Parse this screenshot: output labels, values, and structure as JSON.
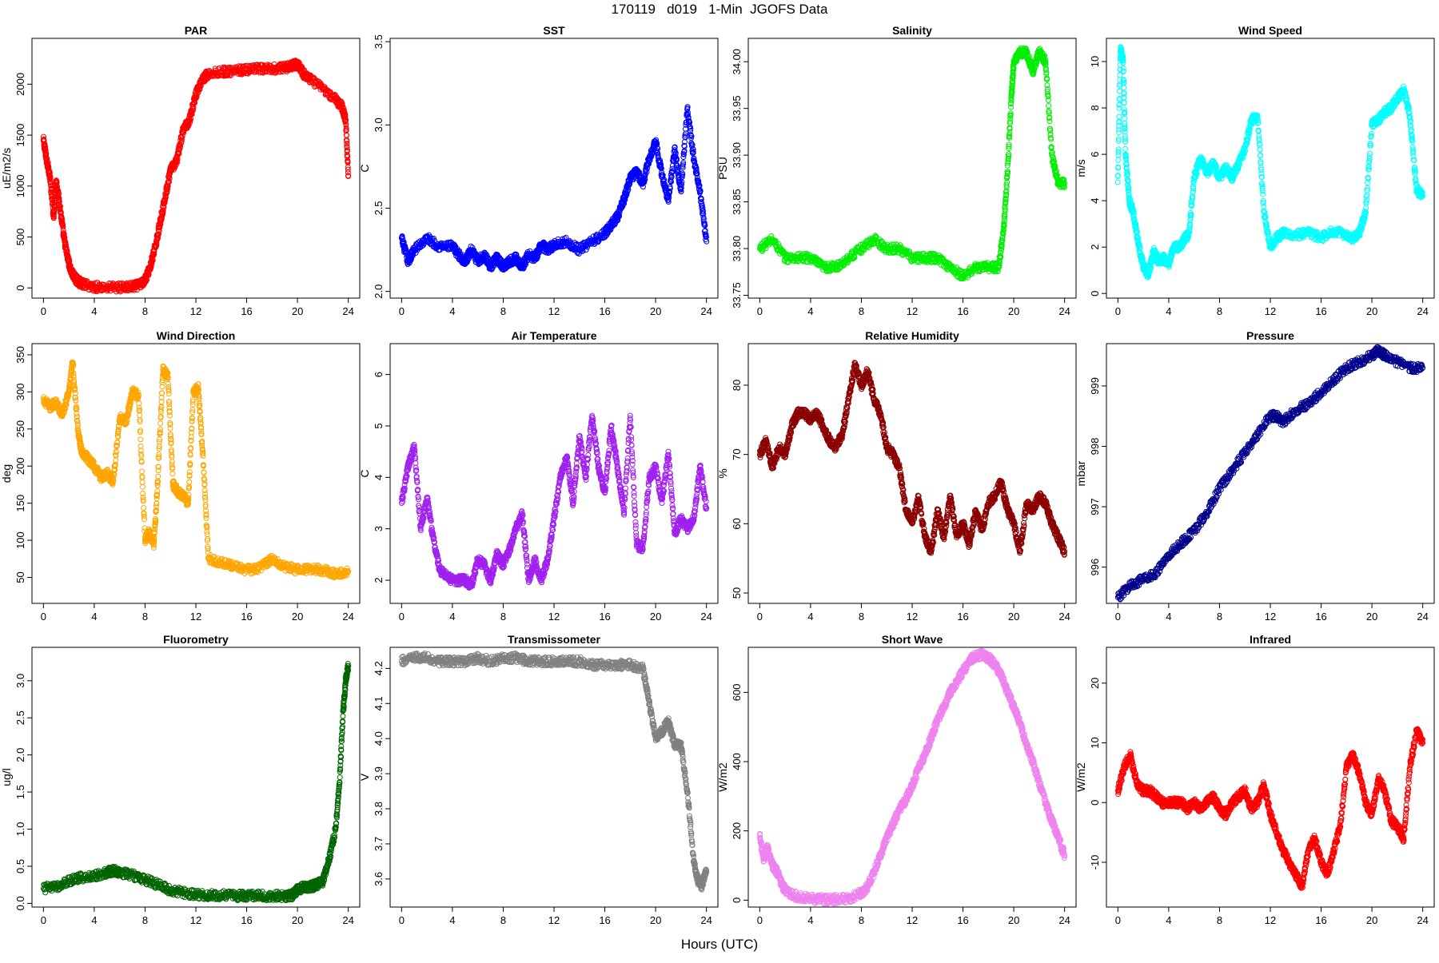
{
  "figure": {
    "title": "170119   d019   1-Min  JGOFS Data",
    "xlabel": "Hours (UTC)"
  },
  "chart_data": [
    {
      "type": "scatter",
      "title": "PAR",
      "ylabel": "uE/m2/s",
      "color": "#ff0000",
      "xlim": [
        0,
        24
      ],
      "xticks": [
        0,
        4,
        8,
        12,
        16,
        20,
        24
      ],
      "ylim": [
        -100,
        2450
      ],
      "yticks": [
        0,
        500,
        1000,
        1500,
        2000
      ],
      "x": [
        0,
        0.2,
        0.5,
        0.8,
        1.0,
        1.3,
        1.6,
        1.9,
        2.2,
        2.6,
        3.0,
        4.0,
        5.0,
        6.0,
        7.0,
        7.6,
        8.0,
        8.4,
        8.8,
        9.2,
        9.6,
        10.0,
        10.5,
        11.0,
        11.5,
        12.0,
        12.5,
        13.0,
        14.0,
        15.0,
        16.0,
        17.0,
        18.0,
        19.0,
        19.5,
        20.0,
        20.5,
        21.0,
        22.0,
        23.0,
        23.5,
        23.8,
        24.0
      ],
      "y": [
        1450,
        1300,
        1100,
        700,
        1050,
        800,
        500,
        300,
        150,
        80,
        40,
        10,
        5,
        5,
        10,
        30,
        80,
        200,
        400,
        650,
        900,
        1150,
        1250,
        1550,
        1650,
        1900,
        2050,
        2100,
        2120,
        2130,
        2140,
        2150,
        2150,
        2160,
        2180,
        2200,
        2100,
        2050,
        1950,
        1850,
        1780,
        1650,
        1100
      ]
    },
    {
      "type": "scatter",
      "title": "SST",
      "ylabel": "C",
      "color": "#0000ff",
      "xlim": [
        0,
        24
      ],
      "xticks": [
        0,
        4,
        8,
        12,
        16,
        20,
        24
      ],
      "ylim": [
        1.96,
        3.52
      ],
      "yticks": [
        2.0,
        2.5,
        3.0,
        3.5
      ],
      "x": [
        0,
        0.5,
        1.0,
        2.0,
        3.0,
        4.0,
        4.5,
        5.0,
        5.5,
        6.0,
        6.5,
        7.0,
        7.5,
        8.0,
        8.5,
        9.0,
        9.5,
        10.0,
        10.5,
        11.0,
        11.5,
        12.0,
        13.0,
        14.0,
        15.0,
        16.0,
        16.5,
        17.0,
        17.5,
        18.0,
        18.5,
        19.0,
        19.5,
        20.0,
        20.5,
        21.0,
        21.5,
        22.0,
        22.5,
        23.0,
        23.5,
        24.0
      ],
      "y": [
        2.32,
        2.18,
        2.25,
        2.32,
        2.27,
        2.27,
        2.22,
        2.18,
        2.25,
        2.18,
        2.22,
        2.15,
        2.2,
        2.15,
        2.18,
        2.2,
        2.15,
        2.22,
        2.2,
        2.28,
        2.25,
        2.28,
        2.3,
        2.25,
        2.3,
        2.35,
        2.4,
        2.45,
        2.55,
        2.68,
        2.72,
        2.65,
        2.8,
        2.9,
        2.7,
        2.55,
        2.85,
        2.6,
        3.1,
        2.8,
        2.6,
        2.3
      ]
    },
    {
      "type": "scatter",
      "title": "Salinity",
      "ylabel": "PSU",
      "color": "#00ee00",
      "xlim": [
        0,
        24
      ],
      "xticks": [
        0,
        4,
        8,
        12,
        16,
        20,
        24
      ],
      "ylim": [
        33.747,
        34.025
      ],
      "yticks": [
        33.75,
        33.8,
        33.85,
        33.9,
        33.95,
        34.0
      ],
      "x": [
        0,
        1,
        2,
        3,
        4,
        5,
        6,
        7,
        8,
        9,
        10,
        11,
        12,
        13,
        14,
        15,
        16,
        17,
        18,
        18.8,
        19.2,
        19.5,
        19.8,
        20.0,
        20.5,
        21.0,
        21.5,
        22.0,
        22.5,
        23.0,
        23.5,
        24.0
      ],
      "y": [
        33.8,
        33.81,
        33.79,
        33.79,
        33.79,
        33.78,
        33.78,
        33.79,
        33.8,
        33.81,
        33.8,
        33.8,
        33.79,
        33.79,
        33.79,
        33.78,
        33.77,
        33.78,
        33.78,
        33.78,
        33.82,
        33.88,
        33.96,
        34.0,
        34.01,
        34.01,
        33.99,
        34.01,
        34.0,
        33.9,
        33.87,
        33.87
      ]
    },
    {
      "type": "scatter",
      "title": "Wind Speed",
      "ylabel": "m/s",
      "color": "#00ffff",
      "xlim": [
        0,
        24
      ],
      "xticks": [
        0,
        4,
        8,
        12,
        16,
        20,
        24
      ],
      "ylim": [
        -0.2,
        11.0
      ],
      "yticks": [
        0,
        2,
        4,
        6,
        8,
        10
      ],
      "x": [
        0,
        0.2,
        0.4,
        0.6,
        0.9,
        1.2,
        1.6,
        2.0,
        2.4,
        2.8,
        3.2,
        3.6,
        4.0,
        4.4,
        4.8,
        5.2,
        5.6,
        6.0,
        6.5,
        7.0,
        7.5,
        8.0,
        8.5,
        9.0,
        9.5,
        10.0,
        10.5,
        11.0,
        11.5,
        12.0,
        12.5,
        13.0,
        14.0,
        15.0,
        16.0,
        17.0,
        18.0,
        18.5,
        19.0,
        19.5,
        20.0,
        20.5,
        21.0,
        21.5,
        22.0,
        22.5,
        23.0,
        23.5,
        24.0
      ],
      "y": [
        4.8,
        10.5,
        10.2,
        6.0,
        4.0,
        3.5,
        2.2,
        1.2,
        0.8,
        1.8,
        1.4,
        1.5,
        1.3,
        2.0,
        2.0,
        2.3,
        2.6,
        5.0,
        5.8,
        5.2,
        5.6,
        5.0,
        5.4,
        5.0,
        5.6,
        6.2,
        7.5,
        7.6,
        3.5,
        2.0,
        2.4,
        2.6,
        2.5,
        2.6,
        2.4,
        2.7,
        2.5,
        2.4,
        2.6,
        3.5,
        7.3,
        7.5,
        7.8,
        8.0,
        8.4,
        8.8,
        7.6,
        4.5,
        4.2
      ]
    },
    {
      "type": "scatter",
      "title": "Wind Direction",
      "ylabel": "deg",
      "color": "#ffa500",
      "xlim": [
        0,
        24
      ],
      "xticks": [
        0,
        4,
        8,
        12,
        16,
        20,
        24
      ],
      "ylim": [
        15,
        365
      ],
      "yticks": [
        50,
        100,
        150,
        200,
        250,
        300,
        350
      ],
      "x": [
        0,
        0.5,
        1.0,
        1.5,
        2.0,
        2.3,
        2.7,
        3.0,
        3.5,
        4.0,
        4.5,
        5.0,
        5.5,
        6.0,
        6.5,
        7.0,
        7.5,
        8.0,
        8.3,
        8.7,
        9.0,
        9.4,
        9.8,
        10.2,
        10.6,
        11.0,
        11.4,
        11.8,
        12.2,
        12.6,
        13.0,
        14.0,
        15.0,
        16.0,
        17.0,
        18.0,
        19.0,
        20.0,
        21.0,
        22.0,
        23.0,
        24.0
      ],
      "y": [
        290,
        280,
        285,
        270,
        300,
        340,
        250,
        220,
        210,
        200,
        185,
        190,
        180,
        265,
        260,
        300,
        295,
        100,
        110,
        95,
        180,
        330,
        320,
        175,
        165,
        160,
        150,
        300,
        305,
        200,
        75,
        70,
        65,
        60,
        62,
        75,
        65,
        60,
        62,
        60,
        55,
        58
      ]
    },
    {
      "type": "scatter",
      "title": "Air Temperature",
      "ylabel": "C",
      "color": "#a020f0",
      "xlim": [
        0,
        24
      ],
      "xticks": [
        0,
        4,
        8,
        12,
        16,
        20,
        24
      ],
      "ylim": [
        1.55,
        6.6
      ],
      "yticks": [
        2,
        3,
        4,
        5,
        6
      ],
      "x": [
        0,
        0.5,
        1.0,
        1.5,
        2.0,
        2.5,
        3.0,
        3.5,
        4.0,
        4.5,
        5.0,
        5.5,
        6.0,
        6.5,
        7.0,
        7.5,
        8.0,
        8.5,
        9.0,
        9.5,
        10.0,
        10.5,
        11.0,
        11.5,
        12.0,
        12.5,
        13.0,
        13.5,
        14.0,
        14.5,
        15.0,
        15.5,
        16.0,
        16.5,
        17.0,
        17.5,
        18.0,
        18.5,
        19.0,
        19.5,
        20.0,
        20.5,
        21.0,
        21.5,
        22.0,
        22.5,
        23.0,
        23.5,
        24.0
      ],
      "y": [
        3.5,
        4.2,
        4.6,
        3.0,
        3.6,
        2.8,
        2.2,
        2.1,
        2.0,
        2.0,
        2.0,
        1.9,
        2.4,
        2.3,
        2.0,
        2.5,
        2.3,
        2.6,
        3.0,
        3.3,
        2.0,
        2.4,
        2.0,
        2.4,
        3.2,
        4.0,
        4.4,
        3.5,
        4.8,
        4.0,
        5.2,
        4.2,
        3.7,
        5.0,
        4.2,
        3.3,
        5.2,
        2.7,
        2.6,
        4.0,
        4.2,
        3.5,
        4.5,
        2.9,
        3.2,
        3.0,
        3.2,
        4.2,
        3.4
      ]
    },
    {
      "type": "scatter",
      "title": "Relative Humidity",
      "ylabel": "%",
      "color": "#8b0000",
      "xlim": [
        0,
        24
      ],
      "xticks": [
        0,
        4,
        8,
        12,
        16,
        20,
        24
      ],
      "ylim": [
        48.5,
        86
      ],
      "yticks": [
        50,
        60,
        70,
        80
      ],
      "x": [
        0,
        0.5,
        1.0,
        1.5,
        2.0,
        2.5,
        3.0,
        3.5,
        4.0,
        4.5,
        5.0,
        5.5,
        6.0,
        6.5,
        7.0,
        7.5,
        8.0,
        8.5,
        9.0,
        9.5,
        10.0,
        10.5,
        11.0,
        11.5,
        12.0,
        12.5,
        13.0,
        13.5,
        14.0,
        14.5,
        15.0,
        15.5,
        16.0,
        16.5,
        17.0,
        17.5,
        18.0,
        18.5,
        19.0,
        19.5,
        20.0,
        20.5,
        21.0,
        21.5,
        22.0,
        22.5,
        23.0,
        23.5,
        24.0
      ],
      "y": [
        70,
        72,
        68,
        71,
        70,
        74,
        76,
        76,
        75,
        76,
        74,
        72,
        71,
        73,
        78,
        83,
        80,
        82,
        78,
        76,
        71,
        70,
        68,
        62,
        60,
        64,
        58,
        56,
        62,
        58,
        64,
        58,
        60,
        57,
        62,
        59,
        63,
        64,
        66,
        62,
        60,
        56,
        63,
        62,
        64,
        63,
        60,
        58,
        56
      ]
    },
    {
      "type": "scatter",
      "title": "Pressure",
      "ylabel": "mbar",
      "color": "#00008b",
      "xlim": [
        0,
        24
      ],
      "xticks": [
        0,
        4,
        8,
        12,
        16,
        20,
        24
      ],
      "ylim": [
        995.4,
        999.7
      ],
      "yticks": [
        996,
        997,
        998,
        999
      ],
      "x": [
        0,
        1,
        2,
        3,
        4,
        5,
        6,
        7,
        8,
        9,
        10,
        11,
        12,
        12.5,
        13,
        14,
        15,
        16,
        17,
        18,
        19,
        20,
        20.5,
        21,
        22,
        23,
        24
      ],
      "y": [
        995.5,
        995.7,
        995.8,
        995.9,
        996.2,
        996.4,
        996.6,
        996.9,
        997.3,
        997.6,
        997.9,
        998.2,
        998.5,
        998.5,
        998.4,
        998.6,
        998.7,
        998.9,
        999.1,
        999.3,
        999.4,
        999.5,
        999.6,
        999.5,
        999.4,
        999.3,
        999.3
      ]
    },
    {
      "type": "scatter",
      "title": "Fluorometry",
      "ylabel": "ug/l",
      "color": "#006400",
      "xlim": [
        0,
        24
      ],
      "xticks": [
        0,
        4,
        8,
        12,
        16,
        20,
        24
      ],
      "ylim": [
        -0.05,
        3.45
      ],
      "yticks": [
        0.0,
        0.5,
        1.0,
        1.5,
        2.0,
        2.5,
        3.0
      ],
      "x": [
        0,
        1,
        2,
        3,
        4,
        5,
        5.5,
        6,
        7,
        8,
        9,
        10,
        11,
        12,
        13,
        14,
        15,
        16,
        17,
        18,
        19,
        19.5,
        20,
        20.5,
        21,
        21.5,
        22,
        22.5,
        23.0,
        23.3,
        23.6,
        23.8,
        24.0
      ],
      "y": [
        0.2,
        0.22,
        0.3,
        0.35,
        0.37,
        0.42,
        0.44,
        0.42,
        0.38,
        0.32,
        0.25,
        0.18,
        0.14,
        0.12,
        0.11,
        0.11,
        0.1,
        0.1,
        0.1,
        0.1,
        0.1,
        0.1,
        0.18,
        0.22,
        0.22,
        0.25,
        0.3,
        0.6,
        1.0,
        1.6,
        2.6,
        3.0,
        3.2
      ]
    },
    {
      "type": "scatter",
      "title": "Transmissometer",
      "ylabel": "V",
      "color": "#808080",
      "xlim": [
        0,
        24
      ],
      "xticks": [
        0,
        4,
        8,
        12,
        16,
        20,
        24
      ],
      "ylim": [
        3.52,
        4.26
      ],
      "yticks": [
        3.6,
        3.7,
        3.8,
        3.9,
        4.0,
        4.1,
        4.2
      ],
      "x": [
        0,
        1,
        2,
        3,
        4,
        5,
        6,
        7,
        8,
        9,
        10,
        11,
        12,
        13,
        14,
        15,
        16,
        17,
        18,
        19,
        19.5,
        20,
        20.5,
        21,
        21.5,
        22,
        22.5,
        23,
        23.3,
        23.6,
        24.0
      ],
      "y": [
        4.22,
        4.23,
        4.23,
        4.22,
        4.22,
        4.22,
        4.23,
        4.22,
        4.23,
        4.23,
        4.22,
        4.22,
        4.22,
        4.22,
        4.22,
        4.21,
        4.21,
        4.21,
        4.21,
        4.2,
        4.1,
        4.0,
        4.02,
        4.05,
        3.98,
        3.98,
        3.85,
        3.65,
        3.6,
        3.58,
        3.62
      ]
    },
    {
      "type": "scatter",
      "title": "Short Wave",
      "ylabel": "W/m2",
      "color": "#ee82ee",
      "xlim": [
        0,
        24
      ],
      "xticks": [
        0,
        4,
        8,
        12,
        16,
        20,
        24
      ],
      "ylim": [
        -20,
        730
      ],
      "yticks": [
        0,
        200,
        400,
        600
      ],
      "x": [
        0,
        0.3,
        0.6,
        1.0,
        1.4,
        1.8,
        2.2,
        3.0,
        4.0,
        5.0,
        6.0,
        7.0,
        8.0,
        8.5,
        9.0,
        9.5,
        10.0,
        10.5,
        11.0,
        11.5,
        12.0,
        12.5,
        13.0,
        13.5,
        14.0,
        14.5,
        15.0,
        15.5,
        16.0,
        16.5,
        17.0,
        17.5,
        18.0,
        18.5,
        19.0,
        19.5,
        20.0,
        20.5,
        21.0,
        21.5,
        22.0,
        22.5,
        23.0,
        23.5,
        24.0
      ],
      "y": [
        180,
        120,
        150,
        100,
        80,
        40,
        20,
        10,
        5,
        2,
        2,
        5,
        20,
        40,
        80,
        130,
        180,
        220,
        260,
        290,
        330,
        380,
        420,
        470,
        520,
        560,
        600,
        630,
        660,
        690,
        705,
        710,
        700,
        680,
        650,
        600,
        560,
        510,
        450,
        400,
        340,
        280,
        230,
        180,
        130
      ]
    },
    {
      "type": "scatter",
      "title": "Infrared",
      "ylabel": "W/m2",
      "color": "#ff0000",
      "xlim": [
        0,
        24
      ],
      "xticks": [
        0,
        4,
        8,
        12,
        16,
        20,
        24
      ],
      "ylim": [
        -17.5,
        26
      ],
      "yticks": [
        -10,
        0,
        10,
        20
      ],
      "x": [
        0,
        0.5,
        1.0,
        1.5,
        2.0,
        2.5,
        3.0,
        3.5,
        4.0,
        4.5,
        5.0,
        5.5,
        6.0,
        6.5,
        7.0,
        7.5,
        8.0,
        8.5,
        9.0,
        9.5,
        10.0,
        10.5,
        11.0,
        11.5,
        12.0,
        12.5,
        13.0,
        13.5,
        14.0,
        14.5,
        15.0,
        15.5,
        16.0,
        16.5,
        17.0,
        17.5,
        18.0,
        18.5,
        19.0,
        19.5,
        20.0,
        20.5,
        21.0,
        21.5,
        22.0,
        22.5,
        23.0,
        23.5,
        24.0
      ],
      "y": [
        2,
        6,
        8,
        3,
        2,
        2,
        1,
        0,
        0,
        0,
        0,
        -1,
        0,
        -1,
        0,
        1,
        -1,
        -2,
        0,
        1,
        2,
        -1,
        0,
        3,
        -2,
        -5,
        -8,
        -10,
        -12,
        -14,
        -8,
        -6,
        -10,
        -12,
        -8,
        -4,
        6,
        8,
        5,
        0,
        -2,
        4,
        2,
        -3,
        -4,
        -6,
        6,
        12,
        10
      ]
    }
  ]
}
